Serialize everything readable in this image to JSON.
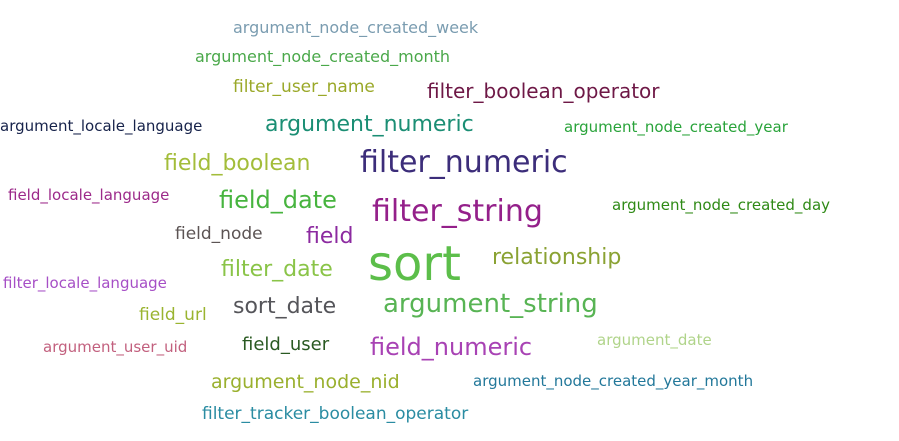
{
  "words": [
    {
      "text": "argument_node_created_week",
      "weight": 2,
      "color": "#7a9cb0"
    },
    {
      "text": "argument_node_created_month",
      "weight": 2,
      "color": "#4aa84a"
    },
    {
      "text": "filter_user_name",
      "weight": 3,
      "color": "#9aa828"
    },
    {
      "text": "filter_boolean_operator",
      "weight": 4,
      "color": "#6e1846"
    },
    {
      "text": "argument_locale_language",
      "weight": 2,
      "color": "#16224a"
    },
    {
      "text": "argument_numeric",
      "weight": 5,
      "color": "#1b8e74"
    },
    {
      "text": "argument_node_created_year",
      "weight": 2,
      "color": "#29a33a"
    },
    {
      "text": "field_boolean",
      "weight": 5,
      "color": "#a3bd3a"
    },
    {
      "text": "filter_numeric",
      "weight": 7,
      "color": "#3c2d7a"
    },
    {
      "text": "field_locale_language",
      "weight": 2,
      "color": "#9c2a8a"
    },
    {
      "text": "field_date",
      "weight": 5,
      "color": "#47b43f"
    },
    {
      "text": "filter_string",
      "weight": 7,
      "color": "#94208a"
    },
    {
      "text": "argument_node_created_day",
      "weight": 2,
      "color": "#2f8a16"
    },
    {
      "text": "field_node",
      "weight": 3,
      "color": "#5c5454"
    },
    {
      "text": "field",
      "weight": 5,
      "color": "#8c2aa0"
    },
    {
      "text": "sort",
      "weight": 10,
      "color": "#5cbe4a"
    },
    {
      "text": "relationship",
      "weight": 5,
      "color": "#8aa233"
    },
    {
      "text": "filter_locale_language",
      "weight": 2,
      "color": "#a64fc6"
    },
    {
      "text": "filter_date",
      "weight": 5,
      "color": "#8ac448"
    },
    {
      "text": "sort_date",
      "weight": 5,
      "color": "#55555a"
    },
    {
      "text": "argument_string",
      "weight": 6,
      "color": "#58b454"
    },
    {
      "text": "field_url",
      "weight": 3,
      "color": "#9ab430"
    },
    {
      "text": "argument_user_uid",
      "weight": 2,
      "color": "#c2607e"
    },
    {
      "text": "field_user",
      "weight": 3,
      "color": "#2a5a22"
    },
    {
      "text": "field_numeric",
      "weight": 5,
      "color": "#a842b4"
    },
    {
      "text": "argument_date",
      "weight": 2,
      "color": "#b0d48a"
    },
    {
      "text": "argument_node_nid",
      "weight": 4,
      "color": "#9ab02e"
    },
    {
      "text": "argument_node_created_year_month",
      "weight": 2,
      "color": "#23789a"
    },
    {
      "text": "filter_tracker_boolean_operator",
      "weight": 3,
      "color": "#2a8ca2"
    }
  ]
}
